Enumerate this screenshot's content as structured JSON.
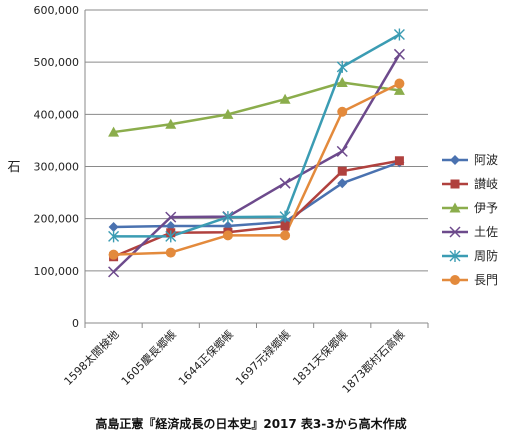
{
  "chart_data": {
    "type": "line",
    "title": "",
    "ylabel": "石",
    "xlabel": "",
    "categories": [
      "1598太閤検地",
      "1605慶長郷帳",
      "1644正保郷帳",
      "1697元禄郷帳",
      "1831天保郷帳",
      "1873郡村石高帳"
    ],
    "ylim": [
      0,
      600000
    ],
    "yticks": [
      0,
      100000,
      200000,
      300000,
      400000,
      500000,
      600000
    ],
    "ytick_labels": [
      "0",
      "100,000",
      "200,000",
      "300,000",
      "400,000",
      "500,000",
      "600,000"
    ],
    "grid": "horizontal",
    "legend_position": "right",
    "series": [
      {
        "name": "阿波",
        "values": [
          184000,
          186000,
          186000,
          194000,
          268000,
          308000
        ],
        "color": "#4a72b0",
        "marker": "diamond"
      },
      {
        "name": "讃岐",
        "values": [
          127000,
          173000,
          174000,
          186000,
          291000,
          311000
        ],
        "color": "#b0413e",
        "marker": "square"
      },
      {
        "name": "伊予",
        "values": [
          366000,
          381000,
          400000,
          429000,
          461000,
          446000
        ],
        "color": "#8bad4c",
        "marker": "triangle"
      },
      {
        "name": "土佐",
        "values": [
          98000,
          203000,
          204000,
          268000,
          329000,
          515000
        ],
        "color": "#6d4a8c",
        "marker": "x"
      },
      {
        "name": "周防",
        "values": [
          166000,
          166000,
          203000,
          204000,
          491000,
          553000
        ],
        "color": "#3b9cb3",
        "marker": "star"
      },
      {
        "name": "長門",
        "values": [
          131000,
          135000,
          168000,
          168000,
          405000,
          459000
        ],
        "color": "#e38a3c",
        "marker": "circle"
      }
    ],
    "caption": "高島正憲『経済成長の日本史』2017 表3-3から高木作成"
  }
}
